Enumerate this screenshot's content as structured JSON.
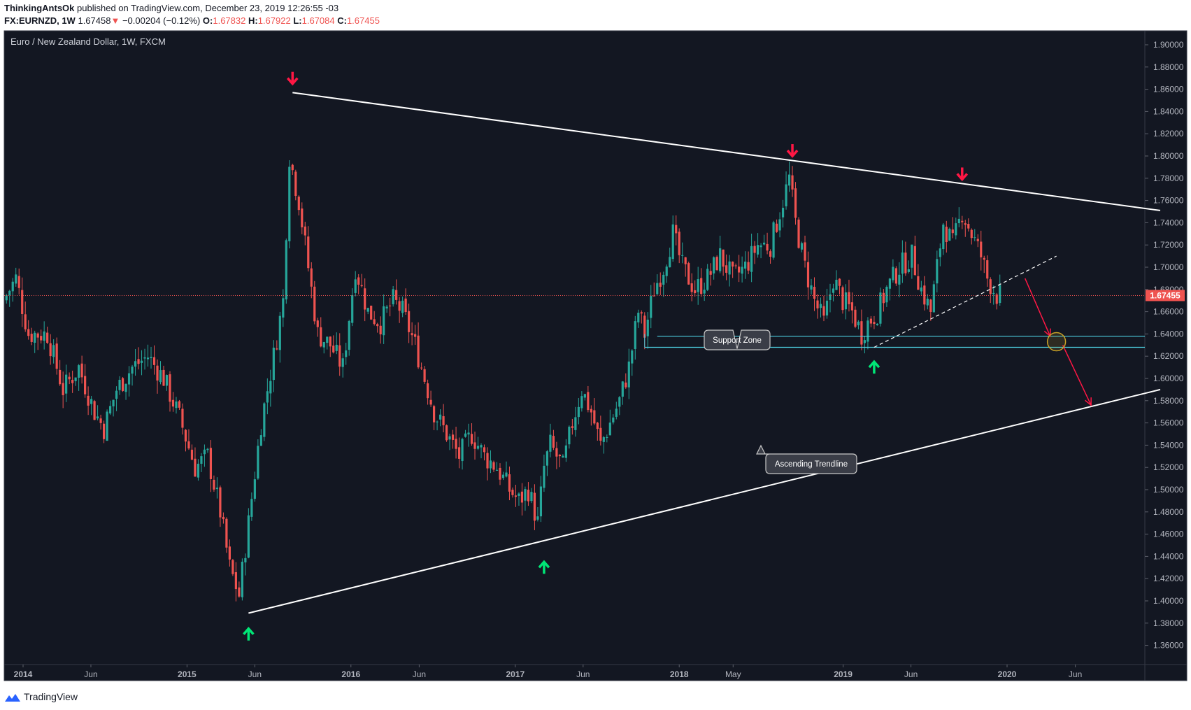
{
  "header": {
    "author": "ThinkingAntsOk",
    "published": "published on TradingView.com, December 23, 2019 12:26:55 -03",
    "symbol": "FX:EURNZD, 1W",
    "last": "1.67458",
    "change_arrow": "▼",
    "change": "−0.00204 (−0.12%)",
    "o_label": "O:",
    "o": "1.67832",
    "h_label": "H:",
    "h": "1.67922",
    "l_label": "L:",
    "l": "1.67084",
    "c_label": "C:",
    "c": "1.67455"
  },
  "footer": {
    "brand": "TradingView",
    "logo_icon": "tradingview-logo-icon"
  },
  "colors": {
    "background": "#131722",
    "up": "#26a69a",
    "down": "#ef5350",
    "trendline": "#ffffff",
    "support": "#4dd0e1",
    "arrow_up": "#00e676",
    "arrow_down": "#ff1744",
    "highlight": "#c9a227"
  },
  "chart_data": {
    "type": "candlestick",
    "title": "Euro / New Zealand Dollar, 1W, FXCM",
    "ylim": [
      1.34,
      1.91
    ],
    "y_ticks": [
      "1.90000",
      "1.88000",
      "1.86000",
      "1.84000",
      "1.82000",
      "1.80000",
      "1.78000",
      "1.76000",
      "1.74000",
      "1.72000",
      "1.70000",
      "1.68000",
      "1.66000",
      "1.64000",
      "1.62000",
      "1.60000",
      "1.58000",
      "1.56000",
      "1.54000",
      "1.52000",
      "1.50000",
      "1.48000",
      "1.46000",
      "1.44000",
      "1.42000",
      "1.40000",
      "1.38000",
      "1.36000"
    ],
    "x_ticks": [
      {
        "label": "2014",
        "date": "2014-01-01"
      },
      {
        "label": "Jun",
        "date": "2014-06-01"
      },
      {
        "label": "2015",
        "date": "2015-01-01"
      },
      {
        "label": "Jun",
        "date": "2015-06-01"
      },
      {
        "label": "2016",
        "date": "2016-01-01"
      },
      {
        "label": "Jun",
        "date": "2016-06-01"
      },
      {
        "label": "2017",
        "date": "2017-01-01"
      },
      {
        "label": "Jun",
        "date": "2017-06-01"
      },
      {
        "label": "2018",
        "date": "2018-01-01"
      },
      {
        "label": "May",
        "date": "2018-05-01"
      },
      {
        "label": "2019",
        "date": "2019-01-01"
      },
      {
        "label": "Jun",
        "date": "2019-06-01"
      },
      {
        "label": "2020",
        "date": "2020-01-01"
      },
      {
        "label": "Jun",
        "date": "2020-06-01"
      }
    ],
    "last_price_label": "1.67455",
    "last_price": 1.67455,
    "price_path": [
      [
        "2013-11-25",
        1.67
      ],
      [
        "2013-12-23",
        1.69
      ],
      [
        "2014-01-20",
        1.64
      ],
      [
        "2014-03-03",
        1.64
      ],
      [
        "2014-04-07",
        1.59
      ],
      [
        "2014-05-12",
        1.61
      ],
      [
        "2014-06-16",
        1.57
      ],
      [
        "2014-07-07",
        1.555
      ],
      [
        "2014-08-04",
        1.59
      ],
      [
        "2014-09-08",
        1.61
      ],
      [
        "2014-10-13",
        1.62
      ],
      [
        "2014-11-17",
        1.6
      ],
      [
        "2014-12-22",
        1.565
      ],
      [
        "2015-01-26",
        1.52
      ],
      [
        "2015-02-23",
        1.53
      ],
      [
        "2015-03-23",
        1.48
      ],
      [
        "2015-04-13",
        1.43
      ],
      [
        "2015-05-04",
        1.405
      ],
      [
        "2015-05-25",
        1.47
      ],
      [
        "2015-06-22",
        1.56
      ],
      [
        "2015-07-20",
        1.62
      ],
      [
        "2015-08-10",
        1.67
      ],
      [
        "2015-08-24",
        1.8
      ],
      [
        "2015-09-14",
        1.76
      ],
      [
        "2015-10-05",
        1.7
      ],
      [
        "2015-10-26",
        1.64
      ],
      [
        "2015-11-23",
        1.63
      ],
      [
        "2015-12-21",
        1.61
      ],
      [
        "2016-01-18",
        1.7
      ],
      [
        "2016-02-15",
        1.66
      ],
      [
        "2016-03-14",
        1.65
      ],
      [
        "2016-04-11",
        1.67
      ],
      [
        "2016-05-02",
        1.66
      ],
      [
        "2016-05-30",
        1.63
      ],
      [
        "2016-06-20",
        1.6
      ],
      [
        "2016-07-11",
        1.57
      ],
      [
        "2016-08-08",
        1.55
      ],
      [
        "2016-09-05",
        1.53
      ],
      [
        "2016-10-03",
        1.55
      ],
      [
        "2016-10-31",
        1.53
      ],
      [
        "2016-11-28",
        1.52
      ],
      [
        "2016-12-26",
        1.5
      ],
      [
        "2017-01-16",
        1.49
      ],
      [
        "2017-02-06",
        1.5
      ],
      [
        "2017-02-27",
        1.47
      ],
      [
        "2017-03-13",
        1.52
      ],
      [
        "2017-03-27",
        1.54
      ],
      [
        "2017-04-24",
        1.52
      ],
      [
        "2017-05-15",
        1.56
      ],
      [
        "2017-06-05",
        1.59
      ],
      [
        "2017-06-26",
        1.57
      ],
      [
        "2017-07-17",
        1.54
      ],
      [
        "2017-08-07",
        1.56
      ],
      [
        "2017-08-28",
        1.58
      ],
      [
        "2017-09-18",
        1.61
      ],
      [
        "2017-10-09",
        1.66
      ],
      [
        "2017-10-23",
        1.64
      ],
      [
        "2017-11-13",
        1.68
      ],
      [
        "2017-12-04",
        1.7
      ],
      [
        "2017-12-25",
        1.73
      ],
      [
        "2018-01-15",
        1.7
      ],
      [
        "2018-02-12",
        1.68
      ],
      [
        "2018-03-12",
        1.69
      ],
      [
        "2018-04-09",
        1.71
      ],
      [
        "2018-05-07",
        1.69
      ],
      [
        "2018-06-04",
        1.7
      ],
      [
        "2018-07-02",
        1.72
      ],
      [
        "2018-07-30",
        1.72
      ],
      [
        "2018-08-27",
        1.76
      ],
      [
        "2018-09-10",
        1.78
      ],
      [
        "2018-09-24",
        1.74
      ],
      [
        "2018-10-15",
        1.7
      ],
      [
        "2018-11-05",
        1.67
      ],
      [
        "2018-11-26",
        1.65
      ],
      [
        "2018-12-17",
        1.69
      ],
      [
        "2019-01-07",
        1.67
      ],
      [
        "2019-01-28",
        1.66
      ],
      [
        "2019-02-18",
        1.64
      ],
      [
        "2019-03-04",
        1.65
      ],
      [
        "2019-03-25",
        1.66
      ],
      [
        "2019-04-15",
        1.68
      ],
      [
        "2019-05-13",
        1.7
      ],
      [
        "2019-06-10",
        1.71
      ],
      [
        "2019-07-01",
        1.68
      ],
      [
        "2019-07-22",
        1.66
      ],
      [
        "2019-08-05",
        1.7
      ],
      [
        "2019-08-19",
        1.74
      ],
      [
        "2019-09-09",
        1.72
      ],
      [
        "2019-09-30",
        1.75
      ],
      [
        "2019-10-21",
        1.73
      ],
      [
        "2019-11-11",
        1.71
      ],
      [
        "2019-11-25",
        1.69
      ],
      [
        "2019-12-16",
        1.675
      ]
    ],
    "annotations": {
      "descending_trendline": [
        [
          "2015-08-24",
          1.857
        ],
        [
          "2020-12-07",
          1.751
        ]
      ],
      "ascending_trendline": [
        [
          "2015-05-18",
          1.389
        ],
        [
          "2020-12-07",
          1.59
        ]
      ],
      "dashed_trendline": [
        [
          "2019-03-11",
          1.628
        ],
        [
          "2020-04-20",
          1.71
        ]
      ],
      "support_zone": {
        "top": 1.638,
        "bottom": 1.628,
        "from": "2017-10-16"
      },
      "support_label": "Support Zone",
      "ascending_label": "Ascending Trendline",
      "down_arrows": [
        [
          "2015-08-24",
          1.87
        ],
        [
          "2018-09-10",
          1.805
        ],
        [
          "2019-09-23",
          1.784
        ]
      ],
      "up_arrows": [
        [
          "2015-05-18",
          1.37
        ],
        [
          "2017-03-06",
          1.43
        ],
        [
          "2019-03-11",
          1.61
        ]
      ],
      "projection": [
        [
          "2020-02-10",
          1.69
        ],
        [
          "2020-04-06",
          1.638
        ],
        [
          "2020-05-04",
          1.63
        ],
        [
          "2020-07-06",
          1.576
        ]
      ],
      "target_circle": [
        "2020-04-20",
        1.633
      ]
    }
  }
}
